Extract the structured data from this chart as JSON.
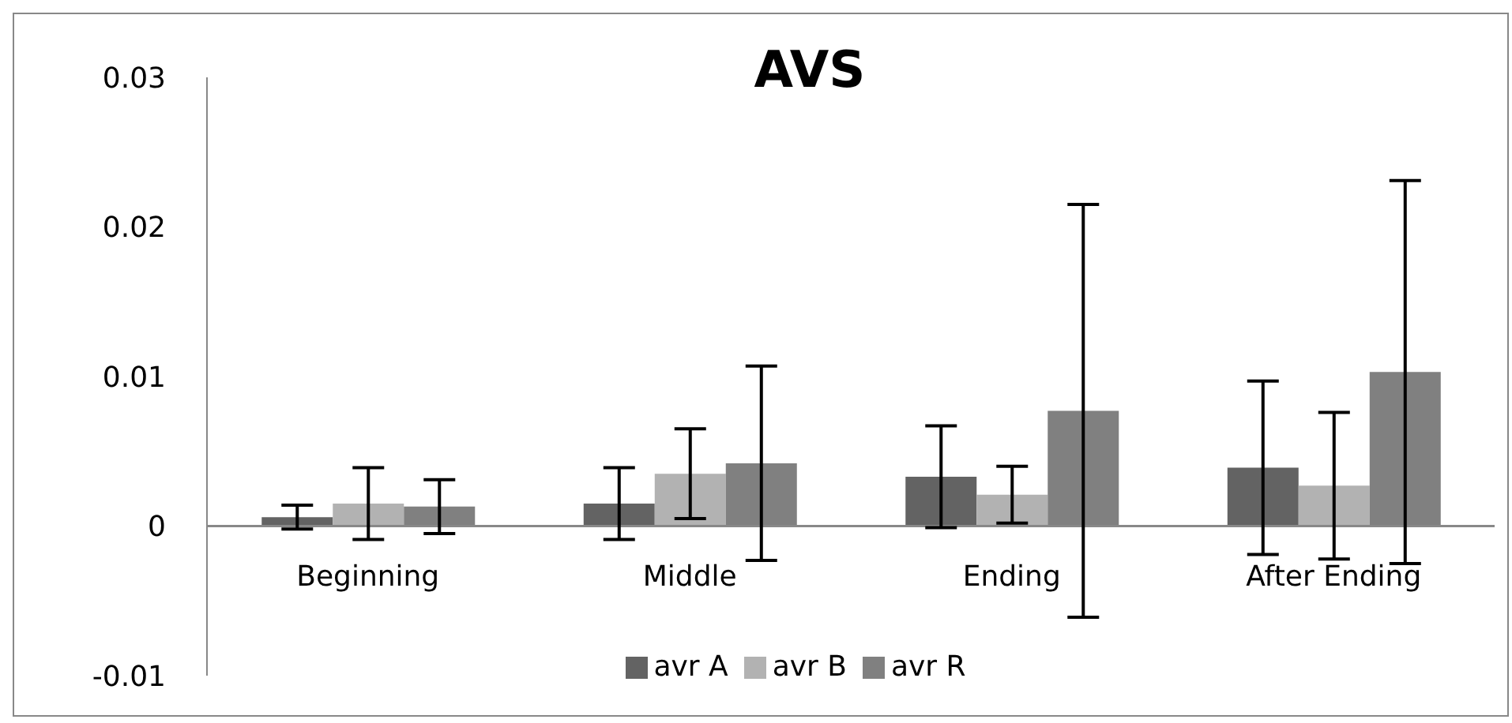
{
  "chart_data": {
    "type": "bar",
    "title": "AVS",
    "categories": [
      "Beginning",
      "Middle",
      "Ending",
      "After Ending"
    ],
    "series": [
      {
        "name": "avr A",
        "color": "#636363",
        "values": [
          0.0006,
          0.0015,
          0.0033,
          0.0039
        ],
        "errors": [
          0.0008,
          0.0024,
          0.0034,
          0.0058
        ]
      },
      {
        "name": "avr B",
        "color": "#b2b2b2",
        "values": [
          0.0015,
          0.0035,
          0.0021,
          0.0027
        ],
        "errors": [
          0.0024,
          0.003,
          0.0019,
          0.0049
        ]
      },
      {
        "name": "avr R",
        "color": "#808080",
        "values": [
          0.0013,
          0.0042,
          0.0077,
          0.0103
        ],
        "errors": [
          0.0018,
          0.0065,
          0.0138,
          0.0128
        ]
      }
    ],
    "ylim": [
      -0.01,
      0.03
    ],
    "yticks": [
      -0.01,
      0,
      0.01,
      0.02,
      0.03
    ],
    "grid": false,
    "legend": "bottom"
  }
}
